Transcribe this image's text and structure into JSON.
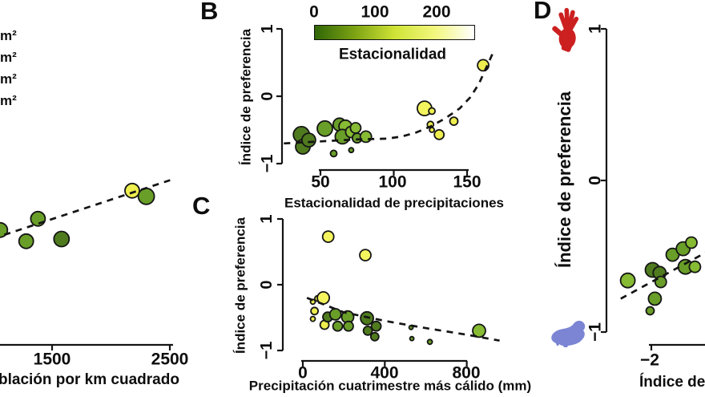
{
  "figure": {
    "background": "#ffffff",
    "size_legend_fragments": [
      "m²",
      "m²",
      "m²",
      "m²"
    ],
    "palette": {
      "dark_green": "#4f7b1e",
      "green": "#699e28",
      "light_green": "#86bb33",
      "yellow": "#eeee4f",
      "bright_yellow": "#f4f45e",
      "trend": "#141414",
      "axis": "#141414",
      "point_stroke": "#151515",
      "hand_red": "#cc2020",
      "guinea_pig_blue": "#7b85d4"
    },
    "colorbar": {
      "ticks": [
        "0",
        "100",
        "200"
      ],
      "title": "Estacionalidad",
      "stops": [
        "#2f6607",
        "#7da313",
        "#cfe336",
        "#f2f77c",
        "#ffffff"
      ],
      "range": [
        0,
        260
      ]
    }
  },
  "chart_data": [
    {
      "panel": "A",
      "panel_label": "",
      "type": "scatter",
      "note": "left-cropped panel",
      "xlabel": "blación por km cuadrado",
      "xticks": [
        "1500",
        "2500"
      ],
      "xtick_values": [
        1500,
        2500
      ],
      "points": [
        {
          "x": 1060,
          "y": -0.62,
          "r": 9,
          "c": "green"
        },
        {
          "x": 1280,
          "y": -0.72,
          "r": 9,
          "c": "green"
        },
        {
          "x": 1380,
          "y": -0.52,
          "r": 9,
          "c": "green"
        },
        {
          "x": 1580,
          "y": -0.7,
          "r": 9.5,
          "c": "dark_green"
        },
        {
          "x": 2180,
          "y": -0.27,
          "r": 9,
          "c": "yellow"
        },
        {
          "x": 2300,
          "y": -0.32,
          "r": 10,
          "c": "green"
        }
      ],
      "trend": [
        [
          900,
          -0.73
        ],
        [
          2520,
          -0.17
        ]
      ]
    },
    {
      "panel": "B",
      "panel_label": "B",
      "type": "scatter",
      "ylabel": "Índice de preferencia",
      "yticks": [
        "1",
        "0",
        "−1"
      ],
      "ytick_values": [
        1,
        0,
        -1
      ],
      "xlabel": "Estacionalidad de precipitaciones",
      "xticks": [
        "50",
        "100",
        "150"
      ],
      "xtick_values": [
        50,
        100,
        150
      ],
      "points": [
        {
          "x": 37,
          "y": -0.57,
          "r": 10,
          "c": "dark_green"
        },
        {
          "x": 38,
          "y": -0.75,
          "r": 9,
          "c": "dark_green"
        },
        {
          "x": 42,
          "y": -0.65,
          "r": 8.5,
          "c": "dark_green"
        },
        {
          "x": 53,
          "y": -0.48,
          "r": 9.5,
          "c": "green"
        },
        {
          "x": 63,
          "y": -0.42,
          "r": 8,
          "c": "green"
        },
        {
          "x": 67,
          "y": -0.45,
          "r": 8,
          "c": "light_green"
        },
        {
          "x": 65,
          "y": -0.6,
          "r": 9,
          "c": "green"
        },
        {
          "x": 71,
          "y": -0.53,
          "r": 7,
          "c": "light_green"
        },
        {
          "x": 74,
          "y": -0.47,
          "r": 6.5,
          "c": "light_green"
        },
        {
          "x": 75,
          "y": -0.62,
          "r": 6,
          "c": "green"
        },
        {
          "x": 81,
          "y": -0.6,
          "r": 7,
          "c": "light_green"
        },
        {
          "x": 59,
          "y": -0.85,
          "r": 4,
          "c": "green"
        },
        {
          "x": 71,
          "y": -0.8,
          "r": 3,
          "c": "green"
        },
        {
          "x": 121,
          "y": -0.18,
          "r": 9,
          "c": "bright_yellow"
        },
        {
          "x": 126,
          "y": -0.22,
          "r": 4,
          "c": "yellow"
        },
        {
          "x": 125,
          "y": -0.42,
          "r": 4,
          "c": "yellow"
        },
        {
          "x": 126,
          "y": -0.5,
          "r": 3,
          "c": "yellow"
        },
        {
          "x": 131,
          "y": -0.57,
          "r": 6,
          "c": "yellow"
        },
        {
          "x": 141,
          "y": -0.37,
          "r": 5,
          "c": "yellow"
        },
        {
          "x": 161,
          "y": 0.46,
          "r": 7,
          "c": "yellow"
        }
      ],
      "trend": [
        [
          25,
          -0.7
        ],
        [
          50,
          -0.67
        ],
        [
          75,
          -0.64
        ],
        [
          95,
          -0.63
        ],
        [
          105,
          -0.6
        ],
        [
          115,
          -0.54
        ],
        [
          125,
          -0.45
        ],
        [
          135,
          -0.33
        ],
        [
          145,
          -0.18
        ],
        [
          152,
          -0.02
        ],
        [
          158,
          0.18
        ],
        [
          163,
          0.42
        ],
        [
          168,
          0.66
        ]
      ]
    },
    {
      "panel": "C",
      "panel_label": "C",
      "type": "scatter",
      "ylabel": "Índice de preferencia",
      "yticks": [
        "1",
        "0",
        "−1"
      ],
      "ytick_values": [
        1,
        0,
        -1
      ],
      "xlabel": "Precipitación cuatrimestre más cálido (mm)",
      "xticks": [
        "0",
        "400",
        "800"
      ],
      "xtick_values": [
        0,
        400,
        800
      ],
      "points": [
        {
          "x": 49,
          "y": -0.26,
          "r": 3,
          "c": "yellow"
        },
        {
          "x": 72,
          "y": -0.21,
          "r": 3.5,
          "c": "yellow"
        },
        {
          "x": 100,
          "y": -0.2,
          "r": 7.5,
          "c": "bright_yellow"
        },
        {
          "x": 57,
          "y": -0.4,
          "r": 4.5,
          "c": "yellow"
        },
        {
          "x": 49,
          "y": -0.52,
          "r": 3,
          "c": "yellow"
        },
        {
          "x": 106,
          "y": -0.61,
          "r": 5.5,
          "c": "yellow"
        },
        {
          "x": 121,
          "y": -0.49,
          "r": 6,
          "c": "dark_green"
        },
        {
          "x": 159,
          "y": -0.45,
          "r": 7,
          "c": "green"
        },
        {
          "x": 170,
          "y": -0.63,
          "r": 6,
          "c": "green"
        },
        {
          "x": 219,
          "y": -0.49,
          "r": 7.5,
          "c": "green"
        },
        {
          "x": 223,
          "y": -0.63,
          "r": 6,
          "c": "green"
        },
        {
          "x": 313,
          "y": -0.51,
          "r": 8,
          "c": "dark_green"
        },
        {
          "x": 317,
          "y": -0.7,
          "r": 5.5,
          "c": "dark_green"
        },
        {
          "x": 358,
          "y": -0.63,
          "r": 6,
          "c": "dark_green"
        },
        {
          "x": 351,
          "y": -0.79,
          "r": 5,
          "c": "dark_green"
        },
        {
          "x": 528,
          "y": -0.65,
          "r": 2.5,
          "c": "green"
        },
        {
          "x": 532,
          "y": -0.82,
          "r": 2.5,
          "c": "green"
        },
        {
          "x": 620,
          "y": -0.87,
          "r": 3,
          "c": "green"
        },
        {
          "x": 860,
          "y": -0.7,
          "r": 8,
          "c": "light_green"
        },
        {
          "x": 124,
          "y": 0.73,
          "r": 7,
          "c": "bright_yellow"
        },
        {
          "x": 305,
          "y": 0.45,
          "r": 7,
          "c": "bright_yellow"
        }
      ],
      "trend": [
        [
          20,
          -0.2
        ],
        [
          200,
          -0.42
        ],
        [
          400,
          -0.55
        ],
        [
          600,
          -0.66
        ],
        [
          800,
          -0.76
        ],
        [
          960,
          -0.85
        ]
      ]
    },
    {
      "panel": "D",
      "panel_label": "D",
      "type": "scatter",
      "note": "right-cropped panel; red hand icon top, blue guinea pig icon bottom",
      "ylabel": "Índice de preferencia",
      "yticks": [
        "1",
        "0",
        "−1"
      ],
      "ytick_values": [
        1,
        0,
        -1
      ],
      "xlabel": "Índice de",
      "xticks": [
        "−2"
      ],
      "xtick_values": [
        -2
      ],
      "points": [
        {
          "x": -2.2,
          "y": -0.66,
          "r": 9,
          "c": "light_green"
        },
        {
          "x": -1.99,
          "y": -0.59,
          "r": 9,
          "c": "dark_green"
        },
        {
          "x": -1.93,
          "y": -0.61,
          "r": 8,
          "c": "dark_green"
        },
        {
          "x": -1.92,
          "y": -0.67,
          "r": 7,
          "c": "green"
        },
        {
          "x": -1.97,
          "y": -0.78,
          "r": 8,
          "c": "green"
        },
        {
          "x": -2.01,
          "y": -0.86,
          "r": 5,
          "c": "green"
        },
        {
          "x": -1.82,
          "y": -0.49,
          "r": 8,
          "c": "green"
        },
        {
          "x": -1.73,
          "y": -0.45,
          "r": 8.5,
          "c": "green"
        },
        {
          "x": -1.66,
          "y": -0.41,
          "r": 7,
          "c": "light_green"
        },
        {
          "x": -1.71,
          "y": -0.57,
          "r": 9,
          "c": "green"
        },
        {
          "x": -1.63,
          "y": -0.57,
          "r": 7,
          "c": "light_green"
        }
      ],
      "trend": [
        [
          -2.26,
          -0.78
        ],
        [
          -1.5,
          -0.46
        ]
      ]
    }
  ]
}
